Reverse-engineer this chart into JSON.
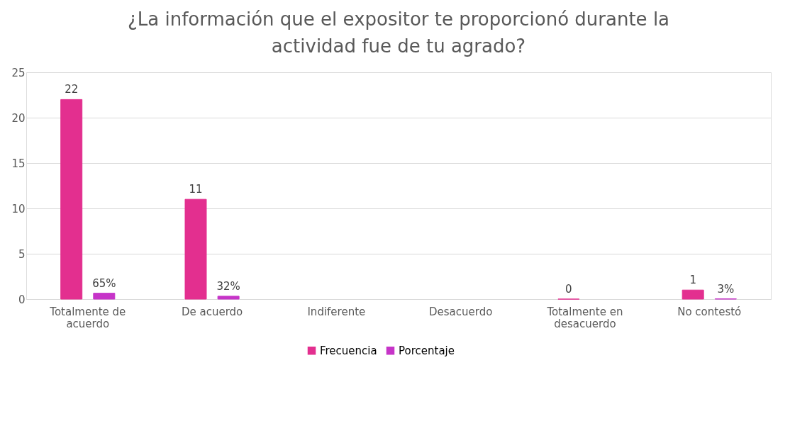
{
  "chart_data": {
    "type": "bar",
    "title": "¿La información que el expositor te proporcionó durante la actividad fue de tu agrado?",
    "categories": [
      "Totalmente de acuerdo",
      "De acuerdo",
      "Indiferente",
      "Desacuerdo",
      "Totalmente en desacuerdo",
      "No contestó"
    ],
    "series": [
      {
        "name": "Frecuencia",
        "color": "#e32f8f",
        "values": [
          22,
          11,
          null,
          null,
          0,
          1
        ],
        "value_labels": [
          "22",
          "11",
          null,
          null,
          "0",
          "1"
        ]
      },
      {
        "name": "Porcentaje",
        "color": "#c634c8",
        "values": [
          0.65,
          0.32,
          null,
          null,
          null,
          0.03
        ],
        "value_labels": [
          "65%",
          "32%",
          null,
          null,
          null,
          "3%"
        ]
      }
    ],
    "ylim": [
      0,
      25
    ],
    "yticks": [
      0,
      5,
      10,
      15,
      20,
      25
    ],
    "grid": "y",
    "legend": "bottom"
  }
}
